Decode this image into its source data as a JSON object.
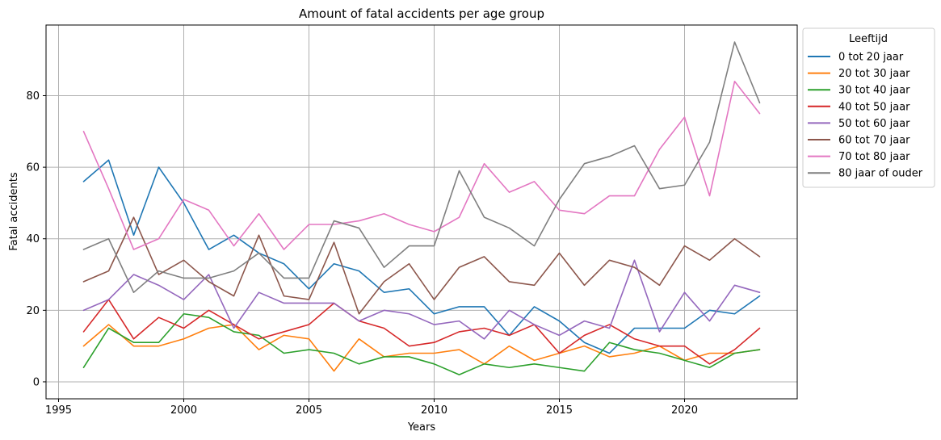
{
  "chart_data": {
    "type": "line",
    "title": "Amount of fatal accidents per age group",
    "xlabel": "Years",
    "ylabel": "Fatal accidents",
    "xlim": [
      1994.5,
      2024.5
    ],
    "ylim": [
      -4.75,
      99.75
    ],
    "xticks": [
      1995,
      2000,
      2005,
      2010,
      2015,
      2020
    ],
    "yticks": [
      0,
      20,
      40,
      60,
      80
    ],
    "grid": true,
    "legend": {
      "title": "Leeftijd",
      "placement": "outside upper right"
    },
    "x": [
      1996,
      1997,
      1998,
      1999,
      2000,
      2001,
      2002,
      2003,
      2004,
      2005,
      2006,
      2007,
      2008,
      2009,
      2010,
      2011,
      2012,
      2013,
      2014,
      2015,
      2016,
      2017,
      2018,
      2019,
      2020,
      2021,
      2022,
      2023
    ],
    "series": [
      {
        "name": "0 tot 20 jaar",
        "color": "#1f77b4",
        "values": [
          56,
          62,
          41,
          60,
          50,
          37,
          41,
          36,
          33,
          26,
          33,
          31,
          25,
          26,
          19,
          21,
          21,
          13,
          21,
          17,
          11,
          8,
          15,
          15,
          15,
          20,
          19,
          24
        ]
      },
      {
        "name": "20 tot 30 jaar",
        "color": "#ff7f0e",
        "values": [
          10,
          16,
          10,
          10,
          12,
          15,
          16,
          9,
          13,
          12,
          3,
          12,
          7,
          8,
          8,
          9,
          5,
          10,
          6,
          8,
          10,
          7,
          8,
          10,
          6,
          8,
          8,
          9
        ]
      },
      {
        "name": "30 tot 40 jaar",
        "color": "#2ca02c",
        "values": [
          4,
          15,
          11,
          11,
          19,
          18,
          14,
          13,
          8,
          9,
          8,
          5,
          7,
          7,
          5,
          2,
          5,
          4,
          5,
          4,
          3,
          11,
          9,
          8,
          6,
          4,
          8,
          9
        ]
      },
      {
        "name": "40 tot 50 jaar",
        "color": "#d62728",
        "values": [
          14,
          23,
          12,
          18,
          15,
          20,
          16,
          12,
          14,
          16,
          22,
          17,
          15,
          10,
          11,
          14,
          15,
          13,
          16,
          8,
          13,
          16,
          12,
          10,
          10,
          5,
          9,
          15
        ]
      },
      {
        "name": "50 tot 60 jaar",
        "color": "#9467bd",
        "values": [
          20,
          23,
          30,
          27,
          23,
          30,
          15,
          25,
          22,
          22,
          22,
          17,
          20,
          19,
          16,
          17,
          12,
          20,
          16,
          13,
          17,
          15,
          34,
          14,
          25,
          17,
          27,
          25
        ]
      },
      {
        "name": "60 tot 70 jaar",
        "color": "#8c564b",
        "values": [
          28,
          31,
          46,
          30,
          34,
          28,
          24,
          41,
          24,
          23,
          39,
          19,
          28,
          33,
          23,
          32,
          35,
          28,
          27,
          36,
          27,
          34,
          32,
          27,
          38,
          34,
          40,
          35
        ]
      },
      {
        "name": "70 tot 80 jaar",
        "color": "#e377c2",
        "values": [
          70,
          54,
          37,
          40,
          51,
          48,
          38,
          47,
          37,
          44,
          44,
          45,
          47,
          44,
          42,
          46,
          61,
          53,
          56,
          48,
          47,
          52,
          52,
          65,
          74,
          52,
          84,
          75
        ]
      },
      {
        "name": "80 jaar of ouder",
        "color": "#7f7f7f",
        "values": [
          37,
          40,
          25,
          31,
          29,
          29,
          31,
          36,
          29,
          29,
          45,
          43,
          32,
          38,
          38,
          59,
          46,
          43,
          38,
          51,
          61,
          63,
          66,
          54,
          55,
          67,
          95,
          78
        ]
      }
    ]
  }
}
